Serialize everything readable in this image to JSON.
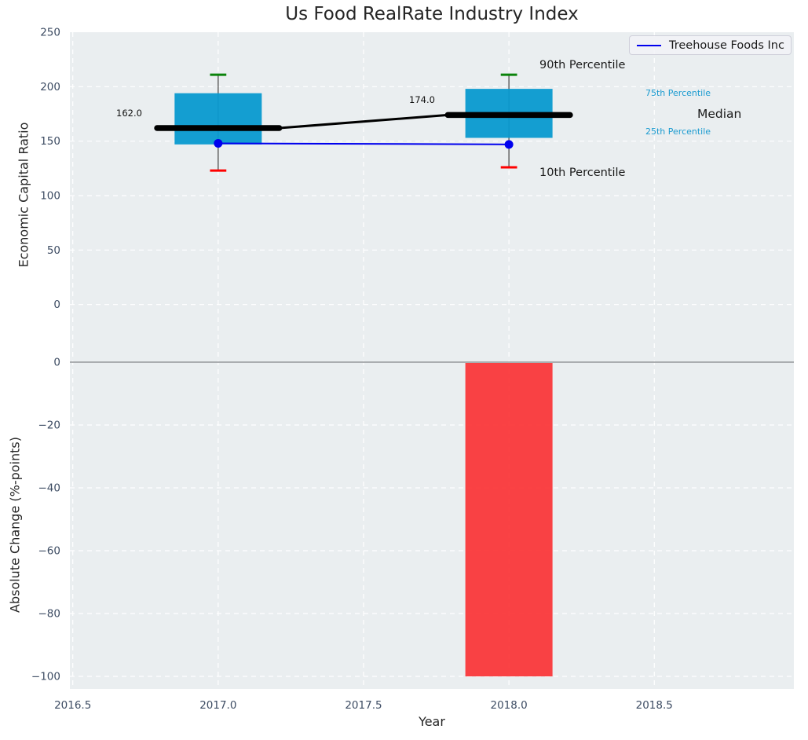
{
  "title": "Us Food RealRate Industry Index",
  "xlabel": "Year",
  "legend": {
    "label": "Treehouse Foods Inc"
  },
  "colors": {
    "plot_bg": "#eaeef0",
    "grid": "#ffffff",
    "box_fill": "#0899cf",
    "company_line": "#0000ee",
    "median_line": "#000000",
    "whisker": "#4d4d4d",
    "cap_top": "#0a830a",
    "cap_bottom": "#ff0000",
    "bar_fill": "#fb2d31",
    "zero_line": "#aaadb0",
    "tick_text": "#3d4c63",
    "label_text": "#262626",
    "percentile_accent": "#1b9bd0"
  },
  "xlim": [
    2016.49,
    2018.98
  ],
  "xticks": [
    {
      "value": 2016.5,
      "label": "2016.5"
    },
    {
      "value": 2017.0,
      "label": "2017.0"
    },
    {
      "value": 2017.5,
      "label": "2017.5"
    },
    {
      "value": 2018.0,
      "label": "2018.0"
    },
    {
      "value": 2018.5,
      "label": "2018.5"
    }
  ],
  "chart_data": [
    {
      "type": "box-percentile",
      "title": "Us Food RealRate Industry Index",
      "ylabel": "Economic Capital Ratio",
      "ylim": [
        -50,
        250
      ],
      "grid": true,
      "legend_position": "upper right",
      "x": [
        2017,
        2018
      ],
      "yticks": [
        {
          "value": 250,
          "label": "250"
        },
        {
          "value": 200,
          "label": "200"
        },
        {
          "value": 150,
          "label": "150"
        },
        {
          "value": 100,
          "label": "100"
        },
        {
          "value": 50,
          "label": "50"
        },
        {
          "value": 0,
          "label": "0"
        }
      ],
      "series": [
        {
          "name": "90th Percentile",
          "values": [
            211,
            211
          ]
        },
        {
          "name": "75th Percentile",
          "values": [
            194,
            198
          ]
        },
        {
          "name": "Median",
          "values": [
            162,
            174
          ]
        },
        {
          "name": "25th Percentile",
          "values": [
            147,
            153
          ]
        },
        {
          "name": "10th Percentile",
          "values": [
            123,
            126
          ]
        },
        {
          "name": "Treehouse Foods Inc",
          "values": [
            148,
            147
          ]
        }
      ],
      "annotations": [
        {
          "text": "162.0",
          "x": 2017
        },
        {
          "text": "174.0",
          "x": 2018
        }
      ],
      "side_labels": [
        {
          "text": "90th Percentile"
        },
        {
          "text": "75th Percentile"
        },
        {
          "text": "Median"
        },
        {
          "text": "25th Percentile"
        },
        {
          "text": "10th Percentile"
        }
      ]
    },
    {
      "type": "bar",
      "ylabel": "Absolute Change (%-points)",
      "ylim": [
        -104,
        1
      ],
      "grid": true,
      "categories": [
        2018
      ],
      "values": [
        -100
      ],
      "yticks": [
        {
          "value": 0,
          "label": "0"
        },
        {
          "value": -20,
          "label": "−20"
        },
        {
          "value": -40,
          "label": "−40"
        },
        {
          "value": -60,
          "label": "−60"
        },
        {
          "value": -80,
          "label": "−80"
        },
        {
          "value": -100,
          "label": "−100"
        }
      ]
    }
  ]
}
